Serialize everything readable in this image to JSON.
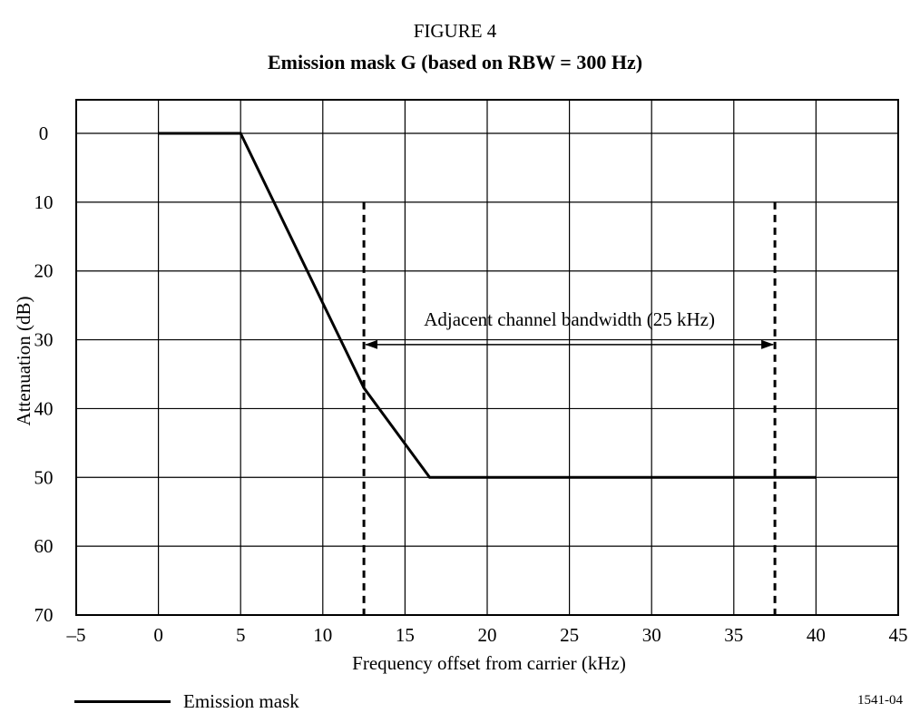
{
  "figure_label": "FIGURE 4",
  "chart_data": {
    "type": "line",
    "title": "Emission mask G (based on RBW = 300 Hz)",
    "xlabel": "Frequency offset from carrier (kHz)",
    "ylabel": "Attenuation (dB)",
    "xlim": [
      -5,
      45
    ],
    "ylim": [
      0,
      70
    ],
    "y_inverted": true,
    "x_ticks": [
      -5,
      0,
      5,
      10,
      15,
      20,
      25,
      30,
      35,
      40,
      45
    ],
    "x_tick_labels": [
      "–5",
      "0",
      "5",
      "10",
      "15",
      "20",
      "25",
      "30",
      "35",
      "40",
      "45"
    ],
    "y_ticks": [
      0,
      10,
      20,
      30,
      40,
      50,
      60,
      70
    ],
    "y_tick_labels": [
      "0",
      "10",
      "20",
      "30",
      "40",
      "50",
      "60",
      "70"
    ],
    "grid": true,
    "series": [
      {
        "name": "Emission mask",
        "x": [
          0,
          5,
          12.5,
          16.5,
          40
        ],
        "y": [
          0,
          0,
          37,
          50,
          50
        ]
      }
    ],
    "vertical_markers": [
      {
        "x": 12.5,
        "y_from": 10,
        "y_to": 70,
        "style": "dashed"
      },
      {
        "x": 37.5,
        "y_from": 10,
        "y_to": 70,
        "style": "dashed"
      }
    ],
    "annotations": [
      {
        "text": "Adjacent channel bandwidth (25 kHz)",
        "x_from": 12.5,
        "x_to": 37.5,
        "y": 27,
        "type": "double-arrow"
      }
    ],
    "legend_position": "bottom-left"
  },
  "figure_code": "1541-04"
}
